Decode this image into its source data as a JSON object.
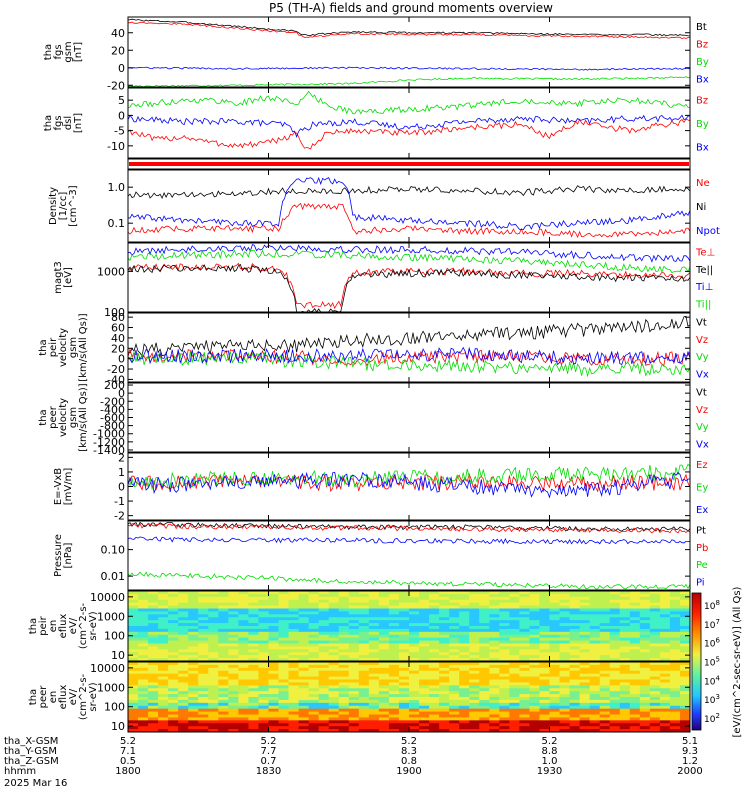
{
  "title": "P5 (TH-A) fields and ground moments overview",
  "date_label": "2025 Mar 16",
  "colors": {
    "black": "#000000",
    "red": "#ff0000",
    "green": "#00dd00",
    "blue": "#0000ff"
  },
  "orbit": {
    "row_labels": [
      "tha_X-GSM",
      "tha_Y-GSM",
      "tha_Z-GSM",
      "hhmm"
    ],
    "columns": [
      [
        "5.2",
        "7.1",
        "0.5",
        "1800"
      ],
      [
        "5.2",
        "7.7",
        "0.7",
        "1830"
      ],
      [
        "5.2",
        "8.3",
        "0.8",
        "1900"
      ],
      [
        "5.2",
        "8.8",
        "1.0",
        "1930"
      ],
      [
        "5.1",
        "9.3",
        "1.2",
        "2000"
      ]
    ]
  },
  "colorbar": {
    "label": "[eV/(cm^2-sec-sr-eV)] (All Qs)",
    "ticks": [
      "10^8",
      "10^7",
      "10^6",
      "10^5",
      "10^4",
      "10^3",
      "10^2"
    ]
  },
  "chart_data": [
    {
      "type": "line",
      "panel": "fgs_gsm",
      "ylabel": [
        "tha",
        "fgs",
        "gsm",
        "[nT]"
      ],
      "ylim": [
        -22,
        58
      ],
      "yticks": [
        "40",
        "20",
        "0",
        "-20"
      ],
      "legend": [
        "Bt",
        "Bz",
        "By",
        "Bx"
      ],
      "series": [
        {
          "name": "Bt",
          "color": "#000000",
          "x": [
            0,
            0.1,
            0.2,
            0.25,
            0.3,
            0.31,
            0.4,
            0.5,
            0.6,
            0.7,
            0.8,
            0.9,
            1
          ],
          "values": [
            55,
            52,
            47,
            44,
            42,
            37,
            41,
            40,
            40,
            39,
            38,
            38,
            37
          ]
        },
        {
          "name": "Bz",
          "color": "#ff0000",
          "x": [
            0,
            0.1,
            0.2,
            0.25,
            0.3,
            0.31,
            0.4,
            0.5,
            0.6,
            0.7,
            0.8,
            0.9,
            1
          ],
          "values": [
            52,
            50,
            45,
            42,
            40,
            35,
            39,
            38,
            38,
            37,
            36,
            35,
            34
          ]
        },
        {
          "name": "By",
          "color": "#00dd00",
          "x": [
            0,
            0.2,
            0.4,
            0.5,
            0.6,
            0.8,
            1
          ],
          "values": [
            -21,
            -20,
            -18,
            -14,
            -12,
            -13,
            -11
          ]
        },
        {
          "name": "Bx",
          "color": "#0000ff",
          "x": [
            0,
            0.2,
            0.4,
            0.6,
            0.8,
            1
          ],
          "values": [
            0,
            -1,
            0,
            -1,
            -2,
            -1
          ]
        }
      ]
    },
    {
      "type": "line",
      "panel": "fgs_dsl",
      "ylabel": [
        "tha",
        "fgs",
        "dsl",
        "[nT]"
      ],
      "ylim": [
        -14,
        9
      ],
      "yticks": [
        "5",
        "0",
        "-5",
        "-10"
      ],
      "legend": [
        "Bz",
        "By",
        "Bx"
      ],
      "series": [
        {
          "name": "Bz",
          "color": "#ff0000",
          "x": [
            0,
            0.05,
            0.1,
            0.15,
            0.2,
            0.25,
            0.3,
            0.32,
            0.35,
            0.4,
            0.5,
            0.6,
            0.7,
            0.75,
            0.8,
            0.85,
            0.9,
            0.95,
            1
          ],
          "values": [
            -5,
            -8,
            -7,
            -9,
            -10,
            -9,
            -6,
            -12,
            -6,
            -5,
            -6,
            -4,
            -3,
            -7,
            -2,
            -4,
            -5,
            -3,
            -2
          ]
        },
        {
          "name": "By",
          "color": "#00dd00",
          "x": [
            0,
            0.05,
            0.1,
            0.15,
            0.2,
            0.25,
            0.3,
            0.32,
            0.35,
            0.4,
            0.5,
            0.6,
            0.7,
            0.8,
            0.9,
            1
          ],
          "values": [
            3,
            4,
            5,
            5,
            4,
            6,
            4,
            7,
            4,
            1,
            2,
            3,
            5,
            4,
            5,
            3
          ]
        },
        {
          "name": "Bx",
          "color": "#0000ff",
          "x": [
            0,
            0.1,
            0.2,
            0.28,
            0.3,
            0.33,
            0.4,
            0.5,
            0.6,
            0.7,
            0.8,
            0.9,
            1
          ],
          "values": [
            -1,
            -2,
            -2,
            -3,
            -6,
            -3,
            -2,
            -4,
            -2,
            -1,
            -2,
            -1,
            -1
          ]
        }
      ]
    },
    {
      "type": "line",
      "panel": "density",
      "ylabel": [
        "Density",
        "[1/cc]",
        "[cm^-3]"
      ],
      "yscale": "log",
      "ylim": [
        0.03,
        3
      ],
      "yticks": [
        "1.0",
        "0.1"
      ],
      "legend": [
        "Ne",
        "Ni",
        "Npot"
      ],
      "series": [
        {
          "name": "Ne",
          "color": "#ff0000",
          "x": [
            0,
            0.1,
            0.2,
            0.27,
            0.3,
            0.38,
            0.4,
            0.5,
            0.6,
            0.7,
            0.8,
            0.9,
            1
          ],
          "values": [
            0.06,
            0.07,
            0.07,
            0.07,
            0.3,
            0.3,
            0.06,
            0.07,
            0.06,
            0.06,
            0.05,
            0.05,
            0.06
          ]
        },
        {
          "name": "Ni",
          "color": "#000000",
          "x": [
            0,
            0.1,
            0.2,
            0.3,
            0.4,
            0.5,
            0.6,
            0.7,
            0.8,
            0.9,
            1
          ],
          "values": [
            0.6,
            0.6,
            0.7,
            0.8,
            0.8,
            0.9,
            0.8,
            0.7,
            0.9,
            0.8,
            0.9
          ]
        },
        {
          "name": "Npot",
          "color": "#0000ff",
          "x": [
            0,
            0.1,
            0.2,
            0.27,
            0.3,
            0.38,
            0.4,
            0.5,
            0.6,
            0.7,
            0.8,
            0.9,
            1
          ],
          "values": [
            0.15,
            0.12,
            0.1,
            0.1,
            1.5,
            1.5,
            0.15,
            0.12,
            0.1,
            0.08,
            0.1,
            0.12,
            0.2
          ]
        }
      ]
    },
    {
      "type": "line",
      "panel": "temperature",
      "ylabel": [
        "magt3",
        "[eV]"
      ],
      "yscale": "log",
      "ylim": [
        100,
        5000
      ],
      "yticks": [
        "1000",
        "100"
      ],
      "legend": [
        "Te⊥",
        "Te||",
        "Ti⊥",
        "Ti||"
      ],
      "series": [
        {
          "name": "Te⊥",
          "color": "#ff0000",
          "x": [
            0,
            0.1,
            0.2,
            0.27,
            0.3,
            0.38,
            0.4,
            0.5,
            0.6,
            0.7,
            0.8,
            0.9,
            1
          ],
          "values": [
            1200,
            1300,
            1300,
            1200,
            150,
            150,
            900,
            1000,
            1000,
            900,
            900,
            800,
            800
          ]
        },
        {
          "name": "Te||",
          "color": "#000000",
          "x": [
            0,
            0.1,
            0.2,
            0.27,
            0.3,
            0.38,
            0.4,
            0.5,
            0.6,
            0.7,
            0.8,
            0.9,
            1
          ],
          "values": [
            1100,
            1200,
            1200,
            1000,
            100,
            100,
            800,
            900,
            900,
            800,
            700,
            700,
            700
          ]
        },
        {
          "name": "Ti⊥",
          "color": "#0000ff",
          "x": [
            0,
            0.1,
            0.2,
            0.3,
            0.4,
            0.5,
            0.6,
            0.7,
            0.8,
            0.9,
            1
          ],
          "values": [
            3000,
            3500,
            3800,
            3800,
            3500,
            3400,
            3200,
            3000,
            2500,
            2200,
            2000
          ]
        },
        {
          "name": "Ti||",
          "color": "#00dd00",
          "x": [
            0,
            0.1,
            0.2,
            0.3,
            0.4,
            0.5,
            0.6,
            0.7,
            0.8,
            0.9,
            1
          ],
          "values": [
            2200,
            2500,
            2700,
            2700,
            2500,
            2200,
            2000,
            1800,
            1500,
            1200,
            1100
          ]
        }
      ]
    },
    {
      "type": "line",
      "panel": "peir_velocity",
      "ylabel": [
        "tha",
        "peir",
        "velocity",
        "gsm",
        "[km/s(All Qs)]"
      ],
      "ylim": [
        -45,
        88
      ],
      "yticks": [
        "80",
        "60",
        "40",
        "20",
        "0",
        "-20",
        "-40"
      ],
      "legend": [
        "Vt",
        "Vz",
        "Vy",
        "Vx"
      ],
      "series": [
        {
          "name": "Vt",
          "color": "#000000",
          "x": [
            0,
            0.1,
            0.2,
            0.3,
            0.4,
            0.5,
            0.6,
            0.7,
            0.8,
            0.9,
            1
          ],
          "values": [
            15,
            20,
            25,
            25,
            35,
            40,
            45,
            50,
            55,
            60,
            70
          ]
        },
        {
          "name": "Vz",
          "color": "#ff0000",
          "x": [
            0,
            0.2,
            0.4,
            0.6,
            0.8,
            1
          ],
          "values": [
            5,
            5,
            0,
            5,
            0,
            0
          ]
        },
        {
          "name": "Vy",
          "color": "#00dd00",
          "x": [
            0,
            0.2,
            0.4,
            0.6,
            0.8,
            1
          ],
          "values": [
            0,
            0,
            -10,
            -15,
            -20,
            -20
          ]
        },
        {
          "name": "Vx",
          "color": "#0000ff",
          "x": [
            0,
            0.2,
            0.4,
            0.6,
            0.8,
            1
          ],
          "values": [
            5,
            5,
            5,
            10,
            0,
            5
          ]
        }
      ]
    },
    {
      "type": "line",
      "panel": "peer_velocity",
      "ylabel": [
        "tha",
        "peer",
        "velocity",
        "gsm",
        "[km/s(All Qs)]"
      ],
      "ylim": [
        -1450,
        250
      ],
      "yticks": [
        "200",
        "0",
        "-200",
        "-400",
        "-600",
        "-800",
        "-1000",
        "-1200",
        "-1400"
      ],
      "legend": [
        "Vt",
        "Vz",
        "Vy",
        "Vx"
      ],
      "series": []
    },
    {
      "type": "line",
      "panel": "efield",
      "ylabel": [
        "E=-VxB",
        "[mV/m]"
      ],
      "ylim": [
        -2.3,
        2.3
      ],
      "yticks": [
        "2",
        "1",
        "0",
        "-1",
        "-2"
      ],
      "legend": [
        "Ez",
        "Ey",
        "Ex"
      ],
      "series": [
        {
          "name": "Ez",
          "color": "#ff0000",
          "x": [
            0,
            0.2,
            0.4,
            0.6,
            0.8,
            1
          ],
          "values": [
            0.2,
            0.3,
            0.2,
            0.3,
            0.2,
            0.3
          ]
        },
        {
          "name": "Ey",
          "color": "#00dd00",
          "x": [
            0,
            0.2,
            0.4,
            0.6,
            0.8,
            1
          ],
          "values": [
            0.3,
            0.6,
            0.5,
            0.7,
            0.8,
            1.0
          ]
        },
        {
          "name": "Ex",
          "color": "#0000ff",
          "x": [
            0,
            0.2,
            0.4,
            0.6,
            0.8,
            1
          ],
          "values": [
            0.1,
            0.2,
            0.5,
            0,
            -0.3,
            0.5
          ]
        }
      ]
    },
    {
      "type": "line",
      "panel": "pressure",
      "ylabel": [
        "Pressure",
        "[nPa]"
      ],
      "yscale": "log",
      "ylim": [
        0.003,
        1.2
      ],
      "yticks": [
        "0.10",
        "0.01"
      ],
      "legend": [
        "Pt",
        "Pb",
        "Pe",
        "Pi"
      ],
      "series": [
        {
          "name": "Pt",
          "color": "#000000",
          "x": [
            0,
            0.2,
            0.4,
            0.6,
            0.8,
            1
          ],
          "values": [
            0.9,
            0.8,
            0.7,
            0.7,
            0.6,
            0.6
          ]
        },
        {
          "name": "Pb",
          "color": "#ff0000",
          "x": [
            0,
            0.2,
            0.4,
            0.6,
            0.8,
            1
          ],
          "values": [
            0.8,
            0.7,
            0.65,
            0.6,
            0.55,
            0.5
          ]
        },
        {
          "name": "Pe",
          "color": "#00dd00",
          "x": [
            0,
            0.2,
            0.4,
            0.6,
            0.8,
            1
          ],
          "values": [
            0.012,
            0.009,
            0.006,
            0.005,
            0.004,
            0.004
          ]
        },
        {
          "name": "Pi",
          "color": "#0000ff",
          "x": [
            0,
            0.2,
            0.4,
            0.6,
            0.8,
            1
          ],
          "values": [
            0.25,
            0.23,
            0.22,
            0.21,
            0.2,
            0.19
          ]
        }
      ]
    },
    {
      "type": "heatmap",
      "panel": "peir_spectrogram",
      "ylabel": [
        "tha",
        "peir",
        "en",
        "eflux",
        "eV/",
        "(cm^2-s-",
        "sr-eV)"
      ],
      "yscale": "log",
      "ylim": [
        5,
        20000
      ],
      "yticks": [
        "10000",
        "1000",
        "100",
        "10"
      ]
    },
    {
      "type": "heatmap",
      "panel": "peer_spectrogram",
      "ylabel": [
        "tha",
        "peer",
        "en",
        "eflux",
        "eV/",
        "(cm^2-s-",
        "sr-eV)"
      ],
      "yscale": "log",
      "ylim": [
        5,
        20000
      ],
      "yticks": [
        "10000",
        "1000",
        "100",
        "10"
      ]
    }
  ]
}
